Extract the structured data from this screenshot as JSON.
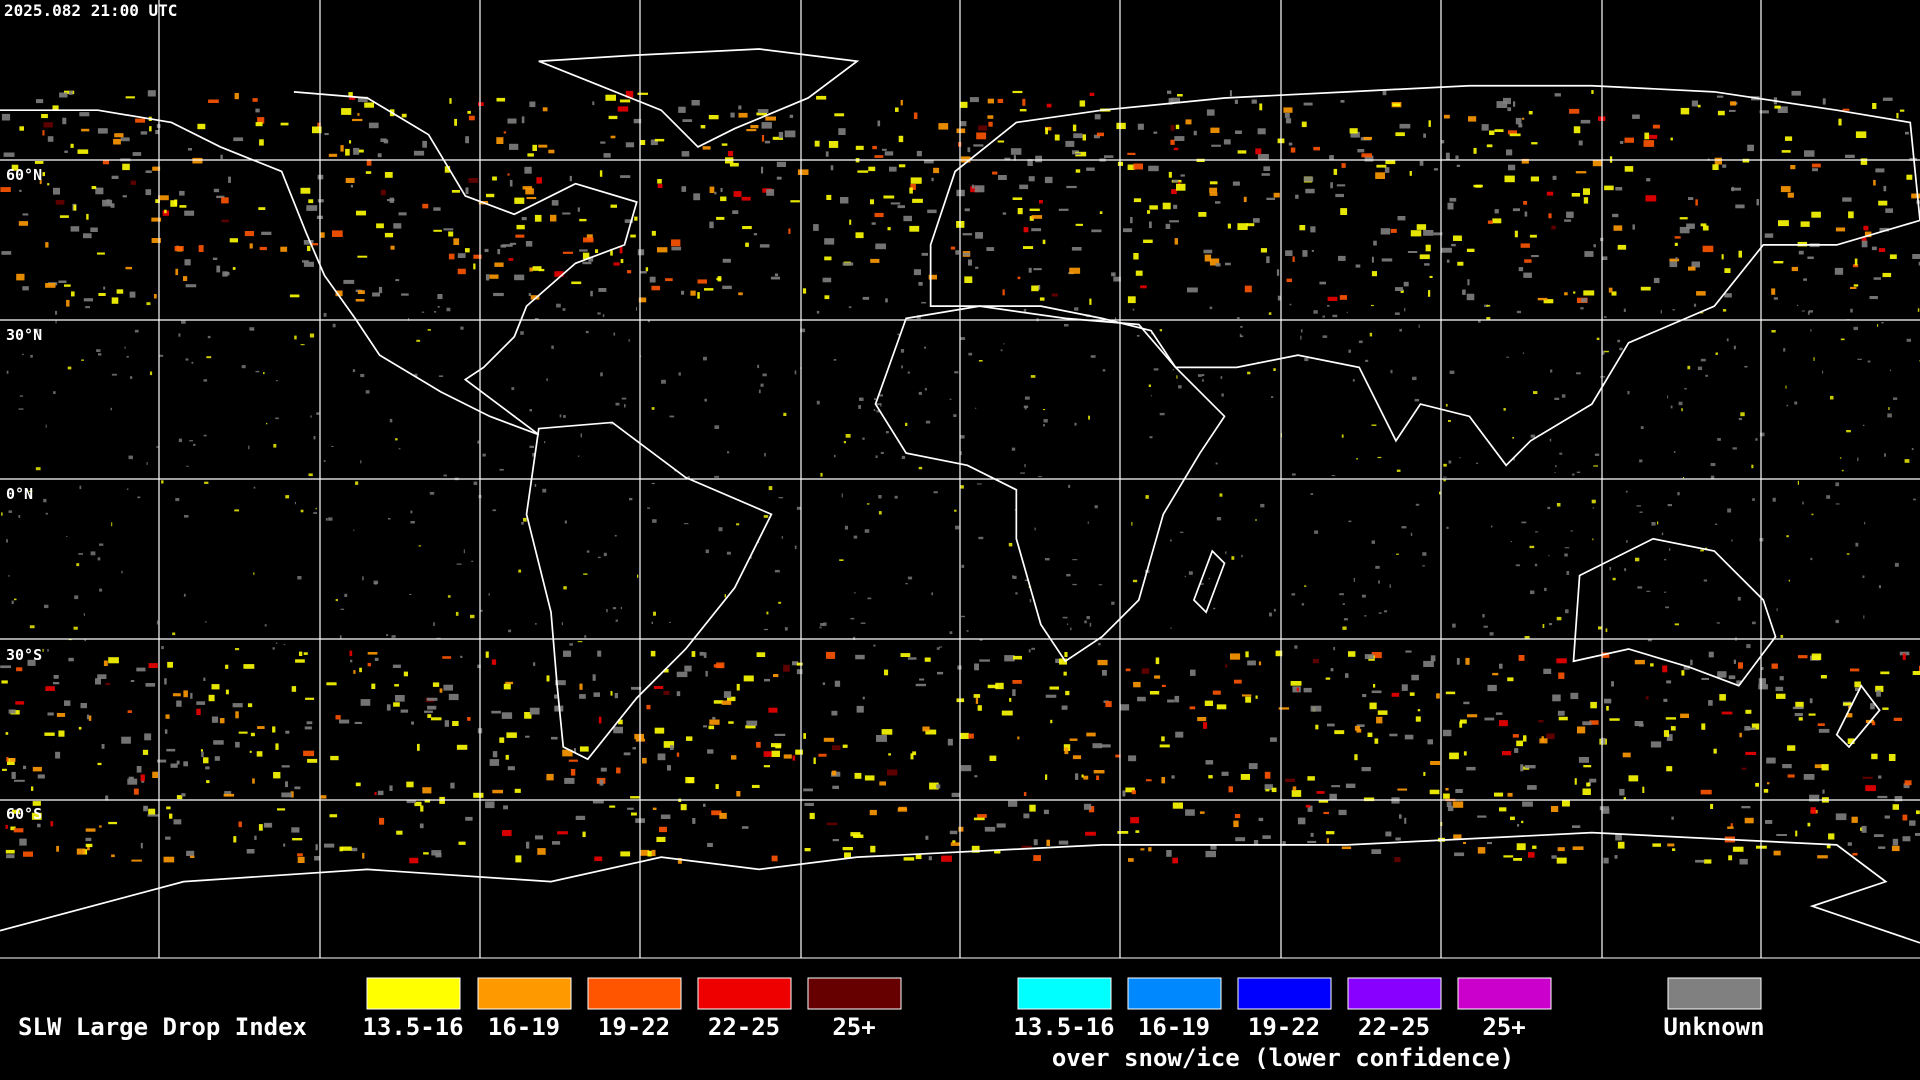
{
  "header": {
    "timestamp": "2025.082 21:00 UTC"
  },
  "latitude_labels": [
    "60°N",
    "30°N",
    "0°N",
    "30°S",
    "60°S"
  ],
  "legend": {
    "title": "SLW Large Drop Index",
    "normal": [
      {
        "label": "13.5-16",
        "color": "#ffff00"
      },
      {
        "label": "16-19",
        "color": "#ff9900"
      },
      {
        "label": "19-22",
        "color": "#ff5500"
      },
      {
        "label": "22-25",
        "color": "#ee0000"
      },
      {
        "label": "25+",
        "color": "#660000"
      }
    ],
    "snow_ice": [
      {
        "label": "13.5-16",
        "color": "#00ffff"
      },
      {
        "label": "16-19",
        "color": "#0088ff"
      },
      {
        "label": "19-22",
        "color": "#0000ff"
      },
      {
        "label": "22-25",
        "color": "#8800ff"
      },
      {
        "label": "25+",
        "color": "#cc00cc"
      }
    ],
    "snow_ice_note": "over snow/ice (lower confidence)",
    "unknown": {
      "label": "Unknown",
      "color": "#808080"
    }
  }
}
